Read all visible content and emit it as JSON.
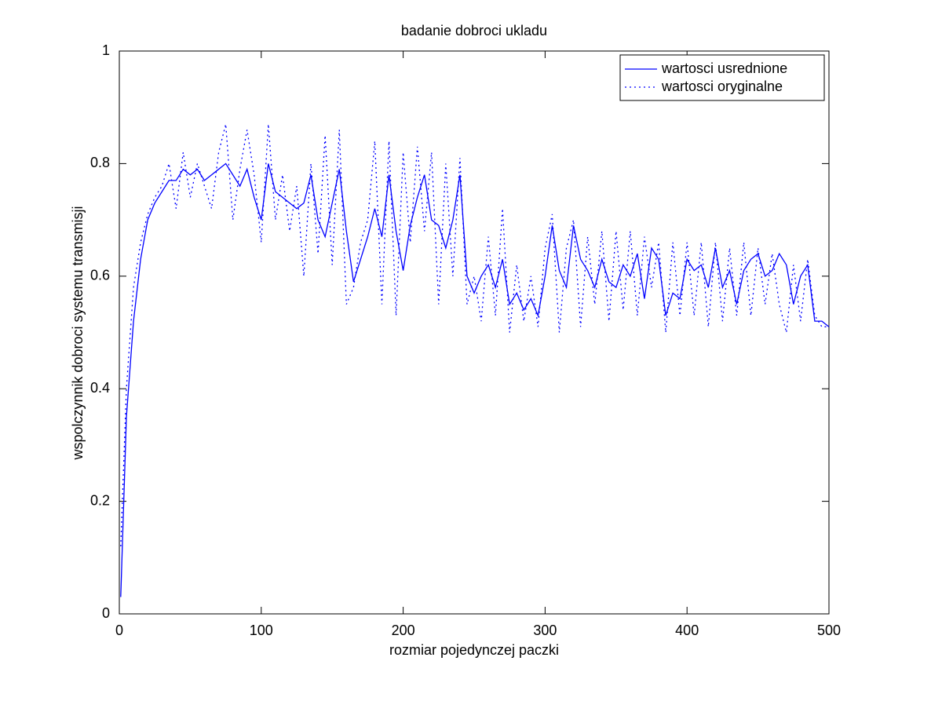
{
  "chart_data": {
    "type": "line",
    "title": "badanie dobroci ukladu",
    "x_label": "rozmiar pojedynczej paczki",
    "y_label": "wspolczynnik dobroci systemu transmisji",
    "x": [
      1,
      5,
      10,
      15,
      20,
      25,
      30,
      35,
      40,
      45,
      50,
      55,
      60,
      65,
      70,
      75,
      80,
      85,
      90,
      95,
      100,
      105,
      110,
      115,
      120,
      125,
      130,
      135,
      140,
      145,
      150,
      155,
      160,
      165,
      170,
      175,
      180,
      185,
      190,
      195,
      200,
      205,
      210,
      215,
      220,
      225,
      230,
      235,
      240,
      245,
      250,
      255,
      260,
      265,
      270,
      275,
      280,
      285,
      290,
      295,
      300,
      305,
      310,
      315,
      320,
      325,
      330,
      335,
      340,
      345,
      350,
      355,
      360,
      365,
      370,
      375,
      380,
      385,
      390,
      395,
      400,
      405,
      410,
      415,
      420,
      425,
      430,
      435,
      440,
      445,
      450,
      455,
      460,
      465,
      470,
      475,
      480,
      485,
      490,
      495,
      500
    ],
    "series": [
      {
        "name": "wartosci usrednione",
        "color": "#0000ff",
        "linestyle": "solid",
        "values": [
          0.03,
          0.35,
          0.52,
          0.63,
          0.7,
          0.73,
          0.75,
          0.77,
          0.77,
          0.79,
          0.78,
          0.79,
          0.77,
          0.78,
          0.79,
          0.8,
          0.78,
          0.76,
          0.79,
          0.74,
          0.7,
          0.8,
          0.75,
          0.74,
          0.73,
          0.72,
          0.73,
          0.78,
          0.7,
          0.67,
          0.73,
          0.79,
          0.68,
          0.59,
          0.63,
          0.67,
          0.72,
          0.67,
          0.78,
          0.68,
          0.61,
          0.69,
          0.74,
          0.78,
          0.7,
          0.69,
          0.65,
          0.7,
          0.78,
          0.6,
          0.57,
          0.6,
          0.62,
          0.58,
          0.63,
          0.55,
          0.57,
          0.54,
          0.56,
          0.53,
          0.6,
          0.69,
          0.61,
          0.58,
          0.69,
          0.63,
          0.61,
          0.58,
          0.63,
          0.59,
          0.58,
          0.62,
          0.6,
          0.64,
          0.56,
          0.65,
          0.63,
          0.53,
          0.57,
          0.56,
          0.63,
          0.61,
          0.62,
          0.58,
          0.65,
          0.58,
          0.61,
          0.55,
          0.61,
          0.63,
          0.64,
          0.6,
          0.61,
          0.64,
          0.62,
          0.55,
          0.6,
          0.62,
          0.52,
          0.52,
          0.51
        ]
      },
      {
        "name": "wartosci oryginalne",
        "color": "#0000ff",
        "linestyle": "dotted",
        "values": [
          0.12,
          0.4,
          0.58,
          0.66,
          0.71,
          0.74,
          0.76,
          0.8,
          0.72,
          0.82,
          0.74,
          0.8,
          0.76,
          0.72,
          0.82,
          0.87,
          0.7,
          0.79,
          0.86,
          0.78,
          0.66,
          0.87,
          0.7,
          0.78,
          0.68,
          0.76,
          0.6,
          0.8,
          0.64,
          0.85,
          0.62,
          0.86,
          0.55,
          0.58,
          0.66,
          0.7,
          0.84,
          0.55,
          0.84,
          0.53,
          0.82,
          0.66,
          0.83,
          0.68,
          0.82,
          0.55,
          0.8,
          0.6,
          0.81,
          0.55,
          0.6,
          0.52,
          0.67,
          0.53,
          0.72,
          0.5,
          0.62,
          0.52,
          0.6,
          0.51,
          0.65,
          0.71,
          0.5,
          0.65,
          0.7,
          0.51,
          0.67,
          0.55,
          0.68,
          0.52,
          0.68,
          0.54,
          0.68,
          0.53,
          0.67,
          0.58,
          0.66,
          0.5,
          0.66,
          0.53,
          0.66,
          0.53,
          0.66,
          0.51,
          0.66,
          0.52,
          0.65,
          0.53,
          0.66,
          0.53,
          0.65,
          0.55,
          0.64,
          0.55,
          0.5,
          0.62,
          0.52,
          0.63,
          0.53,
          0.51,
          0.51
        ]
      }
    ],
    "xlim": [
      0,
      500
    ],
    "xticks": [
      0,
      100,
      200,
      300,
      400,
      500
    ],
    "ylim": [
      0,
      1
    ],
    "yticks": [
      0,
      0.2,
      0.4,
      0.6,
      0.8,
      1
    ],
    "grid": false,
    "legend": "top-right"
  }
}
